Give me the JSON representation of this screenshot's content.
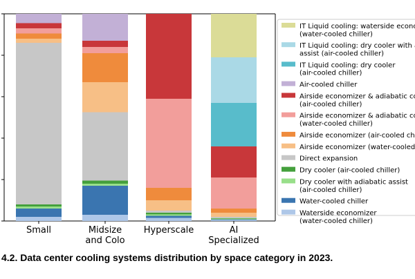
{
  "caption": "4.2.  Data center cooling systems distribution by space category in 2023.",
  "chart_data": {
    "type": "bar",
    "stacked": true,
    "normalized": true,
    "categories": [
      [
        "Small"
      ],
      [
        "Midsize",
        "and Colo"
      ],
      [
        "Hyperscale"
      ],
      [
        "AI",
        "Specialized"
      ]
    ],
    "ylim": [
      0,
      100
    ],
    "legend_position": "right",
    "series": [
      {
        "name": "Waterside economizer (water-cooled chiller)",
        "label_lines": [
          "Waterside economizer",
          "(water-cooled chiller)"
        ],
        "color": "#aec7e8",
        "values": [
          2,
          3,
          1.5,
          0.5
        ]
      },
      {
        "name": "Water-cooled chiller",
        "label_lines": [
          "Water-cooled chiller"
        ],
        "color": "#3a75b0",
        "values": [
          4,
          14,
          1,
          0.3
        ]
      },
      {
        "name": "Dry cooler with adiabatic assist (air-cooled chiller)",
        "label_lines": [
          "Dry cooler with adiabatic assist",
          "(air-cooled chiller)"
        ],
        "color": "#98df8a",
        "values": [
          1,
          1,
          0.7,
          0.3
        ]
      },
      {
        "name": "Dry cooler (air-cooled chiller)",
        "label_lines": [
          "Dry cooler (air-cooled chiller)"
        ],
        "color": "#44a03c",
        "values": [
          1,
          1.5,
          0.8,
          0.3
        ]
      },
      {
        "name": "Direct expansion",
        "label_lines": [
          "Direct expansion"
        ],
        "color": "#c7c7c7",
        "values": [
          78,
          33,
          1,
          0.6
        ]
      },
      {
        "name": "Airside economizer (water-cooled chiller)",
        "label_lines": [
          "Airside economizer (water-cooled chiller)"
        ],
        "color": "#f7bf86",
        "values": [
          2,
          14.5,
          5,
          2
        ]
      },
      {
        "name": "Airside economizer (air-cooled chiller)",
        "label_lines": [
          "Airside economizer (air-cooled chiller)"
        ],
        "color": "#ef8b3c",
        "values": [
          2.5,
          14,
          6,
          2
        ]
      },
      {
        "name": "Airside economizer & adiabatic cooling (water-cooled chiller)",
        "label_lines": [
          "Airside economizer & adiabatic cooling",
          "(water-cooled chiller)"
        ],
        "color": "#f29e9b",
        "values": [
          2.5,
          3,
          43,
          15
        ]
      },
      {
        "name": "Airside economizer & adiabatic cooling (air-cooled chiller)",
        "label_lines": [
          "Airside economizer & adiabatic cooling",
          "(air-cooled chiller)"
        ],
        "color": "#c8373a",
        "values": [
          2.5,
          3,
          41,
          15
        ]
      },
      {
        "name": "Air-cooled chiller",
        "label_lines": [
          "Air-cooled chiller"
        ],
        "color": "#c2b0d6",
        "values": [
          4.5,
          13,
          0,
          0
        ]
      },
      {
        "name": "IT Liquid cooling: dry cooler (air-cooled chiller)",
        "label_lines": [
          "IT Liquid cooling: dry cooler",
          "(air-cooled chiller)"
        ],
        "color": "#58bccb",
        "values": [
          0,
          0,
          0,
          21
        ]
      },
      {
        "name": "IT Liquid cooling: dry cooler with adiabatic assist (air-cooled chiller)",
        "label_lines": [
          "IT Liquid cooling: dry cooler with adiabatic",
          "assist (air-cooled chiller)"
        ],
        "color": "#aad9e6",
        "values": [
          0,
          0,
          0,
          22
        ]
      },
      {
        "name": "IT Liquid cooling: waterside economizer (water-cooled chiller)",
        "label_lines": [
          "IT Liquid cooling: waterside economizer",
          "(water-cooled chiller)"
        ],
        "color": "#dbdc97",
        "values": [
          0,
          0,
          0,
          21
        ]
      }
    ]
  }
}
